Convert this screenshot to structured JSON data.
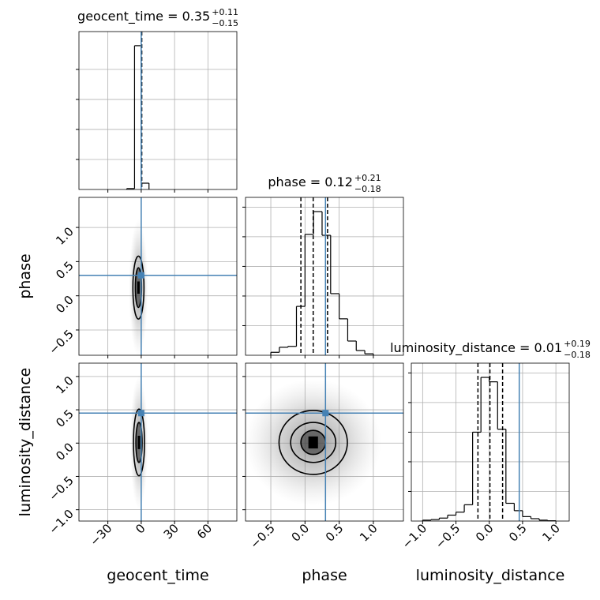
{
  "chart_data": {
    "type": "corner",
    "truth_color": "#4682b4",
    "grid": true,
    "parameters": [
      {
        "name": "geocent_time",
        "xlim": [
          -56,
          86
        ],
        "xticks": [
          {
            "value": -30,
            "label": "−30"
          },
          0,
          30,
          60
        ],
        "truth": 0,
        "quantiles": [
          0.2,
          0.35,
          0.46
        ],
        "title": {
          "text": "geocent_time = 0.35",
          "upper": "+0.11",
          "lower": "−0.15"
        },
        "hist": {
          "bins": [
            -13,
            -6,
            0,
            7
          ],
          "counts": [
            0.03,
            4.79,
            0.21
          ],
          "ylim": [
            0,
            5.26
          ],
          "yticks": [
            1,
            2,
            3,
            4
          ]
        }
      },
      {
        "name": "phase",
        "xlim": [
          -0.87,
          1.44
        ],
        "xticks": [
          {
            "value": -0.5,
            "label": "−0.5"
          },
          {
            "value": 0,
            "label": "0.0"
          },
          {
            "value": 0.5,
            "label": "0.5"
          },
          {
            "value": 1,
            "label": "1.0"
          }
        ],
        "truth": 0.3,
        "quantiles": [
          -0.06,
          0.12,
          0.33
        ],
        "title": {
          "text": "phase = 0.12",
          "upper": "+0.21",
          "lower": "−0.18"
        },
        "hist": {
          "bins": [
            -0.5,
            -0.375,
            -0.25,
            -0.125,
            0,
            0.125,
            0.25,
            0.375,
            0.5,
            0.625,
            0.75,
            0.875,
            1.0
          ],
          "counts": [
            0.1,
            0.27,
            0.3,
            1.65,
            4.08,
            4.85,
            4.05,
            2.08,
            1.23,
            0.48,
            0.16,
            0.05
          ],
          "ylim": [
            0,
            5.33
          ],
          "yticks": [
            1,
            2,
            3,
            4,
            5
          ]
        }
      },
      {
        "name": "luminosity_distance",
        "xlim": [
          -1.17,
          1.2
        ],
        "xticks": [
          {
            "value": -1,
            "label": "−1.0"
          },
          {
            "value": -0.5,
            "label": "−0.5"
          },
          {
            "value": 0,
            "label": "0.0"
          },
          {
            "value": 0.5,
            "label": "0.5"
          },
          {
            "value": 1,
            "label": "1.0"
          }
        ],
        "truth": 0.45,
        "quantiles": [
          -0.17,
          0.01,
          0.2
        ],
        "title": {
          "text": "luminosity_distance = 0.01",
          "upper": "+0.19",
          "lower": "−0.18"
        },
        "hist": {
          "bins": [
            -1,
            -0.875,
            -0.75,
            -0.625,
            -0.5,
            -0.375,
            -0.25,
            -0.125,
            0,
            0.125,
            0.25,
            0.375,
            0.5,
            0.625,
            0.75,
            0.875,
            1.0
          ],
          "counts": [
            0.03,
            0.05,
            0.1,
            0.2,
            0.3,
            0.55,
            3.0,
            4.85,
            4.7,
            3.1,
            0.6,
            0.35,
            0.15,
            0.08,
            0.03,
            0.01
          ],
          "ylim": [
            0,
            5.33
          ],
          "yticks": [
            1,
            2,
            3,
            4,
            5
          ]
        }
      }
    ],
    "pairs": [
      {
        "cx": -2.5,
        "cy": 0.12,
        "cloud": {
          "rx": 8.5,
          "ry": 1.0
        },
        "contours": [
          {
            "rx": 2.8,
            "ry": 0.29
          },
          {
            "rx": 5,
            "ry": 0.46
          }
        ],
        "core": {
          "rx": 1.1,
          "ry": 0.09
        }
      },
      {
        "cx": -2,
        "cy": 0.01,
        "cloud": {
          "rx": 8,
          "ry": 1.0
        },
        "contours": [
          {
            "rx": 2.8,
            "ry": 0.3
          },
          {
            "rx": 5,
            "ry": 0.5
          }
        ],
        "core": {
          "rx": 1.1,
          "ry": 0.1
        }
      },
      {
        "cx": 0.12,
        "cy": 0.01,
        "cloud": {
          "rx": 1.0,
          "ry": 0.95
        },
        "contours": [
          {
            "rx": 0.18,
            "ry": 0.18
          },
          {
            "rx": 0.33,
            "ry": 0.3
          },
          {
            "rx": 0.5,
            "ry": 0.48
          }
        ],
        "core": {
          "rx": 0.07,
          "ry": 0.09
        }
      }
    ]
  }
}
